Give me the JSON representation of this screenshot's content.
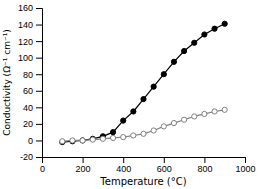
{
  "chart_data": {
    "type": "line",
    "xlabel": "Temperature (°C)",
    "ylabel": "Conductivity (Ω⁻¹ cm⁻¹)",
    "xlim": [
      0,
      1000
    ],
    "ylim": [
      -20,
      160
    ],
    "xticks": [
      0,
      200,
      400,
      600,
      800,
      1000
    ],
    "yticks": [
      -20,
      0,
      20,
      40,
      60,
      80,
      100,
      120,
      140,
      160
    ],
    "x": [
      100,
      150,
      200,
      250,
      300,
      350,
      400,
      450,
      500,
      550,
      600,
      650,
      700,
      750,
      800,
      850,
      900
    ],
    "series": [
      {
        "color": "black",
        "marker": "circle",
        "values": [
          -2,
          -1,
          0,
          2,
          5,
          10,
          24,
          35,
          50,
          65,
          80,
          95,
          108,
          118,
          128,
          135,
          141
        ]
      },
      {
        "color": "gray",
        "marker": "open-circle",
        "values": [
          -1,
          0,
          0,
          1,
          2,
          3,
          4,
          6,
          8,
          12,
          17,
          21,
          25,
          29,
          32,
          35,
          37
        ]
      }
    ]
  }
}
